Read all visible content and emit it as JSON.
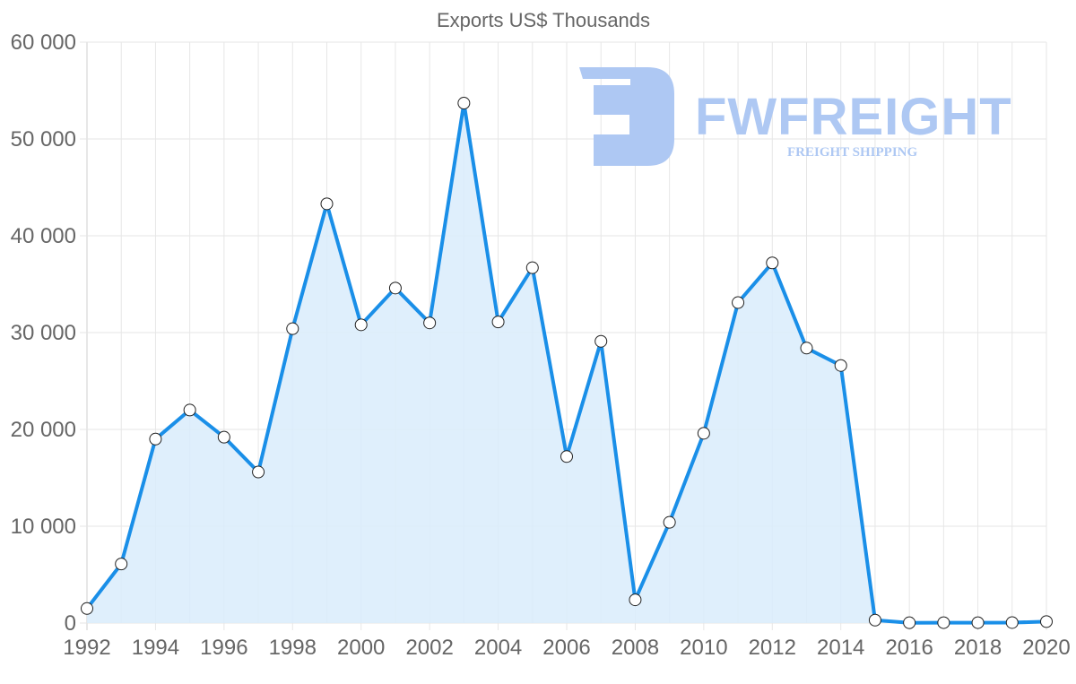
{
  "chart_data": {
    "type": "area",
    "title": "Exports US$ Thousands",
    "xlabel": "",
    "ylabel": "",
    "x": [
      1992,
      1993,
      1994,
      1995,
      1996,
      1997,
      1998,
      1999,
      2000,
      2001,
      2002,
      2003,
      2004,
      2005,
      2006,
      2007,
      2008,
      2009,
      2010,
      2011,
      2012,
      2013,
      2014,
      2015,
      2016,
      2017,
      2018,
      2019,
      2020
    ],
    "series": [
      {
        "name": "Exports US$ Thousands",
        "values": [
          1500,
          6100,
          19000,
          22000,
          19200,
          15600,
          30400,
          43300,
          30800,
          34600,
          31000,
          53700,
          31100,
          36700,
          17200,
          29100,
          2400,
          10400,
          19600,
          33100,
          37200,
          28400,
          26600,
          300,
          30,
          40,
          40,
          50,
          150
        ],
        "line_color": "#1a8fe8",
        "fill_color": "#d9ecfb",
        "marker_fill": "#ffffff",
        "marker_stroke": "#222222"
      }
    ],
    "ylim": [
      0,
      60000
    ],
    "xlim": [
      1992,
      2020
    ],
    "y_ticks": [
      0,
      10000,
      20000,
      30000,
      40000,
      50000,
      60000
    ],
    "y_tick_labels": [
      "0",
      "10 000",
      "20 000",
      "30 000",
      "40 000",
      "50 000",
      "60 000"
    ],
    "x_ticks": [
      1992,
      1994,
      1996,
      1998,
      2000,
      2002,
      2004,
      2006,
      2008,
      2010,
      2012,
      2014,
      2016,
      2018,
      2020
    ],
    "x_tick_labels": [
      "1992",
      "1994",
      "1996",
      "1998",
      "2000",
      "2002",
      "2004",
      "2006",
      "2008",
      "2010",
      "2012",
      "2014",
      "2016",
      "2018",
      "2020"
    ],
    "grid": true,
    "legend": "none"
  },
  "watermark": {
    "brand": "FWFREIGHT",
    "tagline": "FREIGHT SHIPPING",
    "color": "#aec8f3"
  }
}
